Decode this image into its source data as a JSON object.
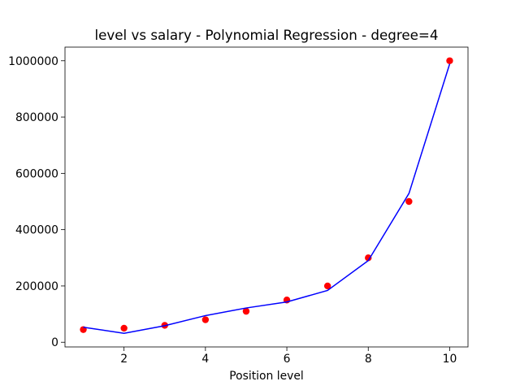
{
  "chart_data": {
    "type": "scatter",
    "title": "level vs salary - Polynomial Regression - degree=4",
    "x_label": "Position level",
    "x": [
      1,
      2,
      3,
      4,
      5,
      6,
      7,
      8,
      9,
      10
    ],
    "series": [
      {
        "type": "scatter",
        "color": "#ff0000",
        "values": [
          45000,
          50000,
          60000,
          80000,
          110000,
          150000,
          200000,
          300000,
          500000,
          1000000
        ]
      },
      {
        "type": "line",
        "color": "#0000ff",
        "values": [
          53357,
          31760,
          58642,
          94633,
          121725,
          143275,
          184004,
          289994,
          528695,
          988916
        ]
      }
    ],
    "xlim": [
      0.55,
      10.45
    ],
    "xticks": [
      2,
      4,
      6,
      8,
      10
    ],
    "ylim": [
      -16652,
      1048412
    ],
    "yticks": [
      0,
      200000,
      400000,
      600000,
      800000,
      1000000
    ]
  }
}
